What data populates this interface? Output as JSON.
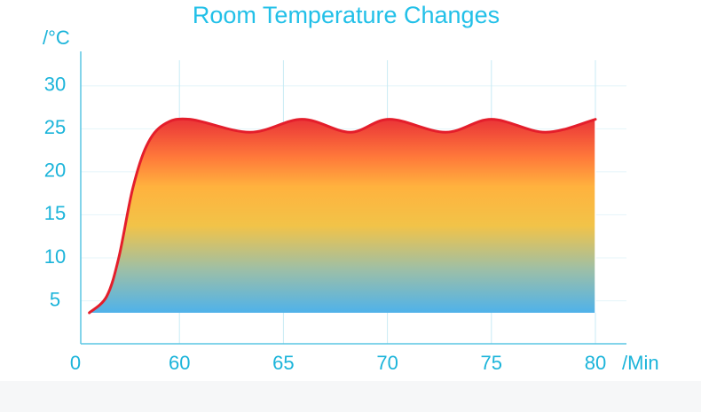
{
  "chart_data": {
    "type": "area",
    "title": "Room Temperature Changes",
    "y_label": "/°C",
    "x_label": "/Min",
    "x": [
      8,
      18,
      25,
      33,
      41,
      51,
      60.5,
      63.4,
      65.9,
      68.2,
      70.1,
      72.8,
      75,
      77.6,
      80
    ],
    "values": [
      3.6,
      5.5,
      10,
      18,
      23,
      25.5,
      26.1,
      24.6,
      26.1,
      24.6,
      26.1,
      24.6,
      26.1,
      24.6,
      26.1
    ],
    "color": "#e41e2b",
    "xticks": [
      0,
      60,
      65,
      70,
      75,
      80
    ],
    "ylim": [
      0,
      34
    ],
    "yticks": [
      5,
      10,
      15,
      20,
      25,
      30
    ],
    "grid": true
  }
}
